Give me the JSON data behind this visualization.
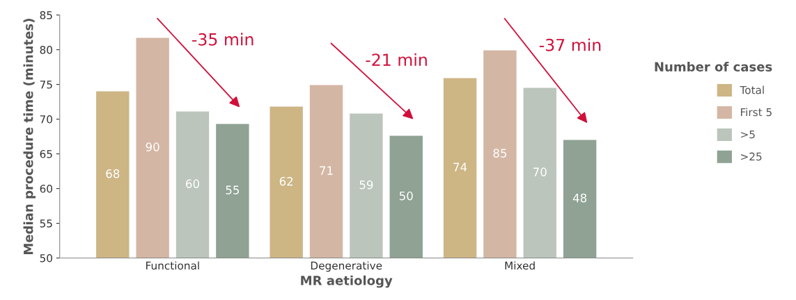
{
  "chart_data": {
    "type": "bar",
    "xlabel": "MR aetiology",
    "ylabel": "Median procedure time (minutes)",
    "legend_title": "Number of cases",
    "categories": [
      "Functional",
      "Degenerative",
      "Mixed"
    ],
    "series": [
      {
        "name": "Total",
        "color": "#cdb584",
        "values": [
          74.0,
          71.8,
          75.9
        ]
      },
      {
        "name": "First 5",
        "color": "#d4b6a4",
        "values": [
          81.7,
          74.9,
          79.9
        ]
      },
      {
        "name": ">5",
        "color": "#bbc5bc",
        "values": [
          71.1,
          70.8,
          74.5
        ]
      },
      {
        "name": ">25",
        "color": "#8fa294",
        "values": [
          69.3,
          67.6,
          67.0
        ]
      }
    ],
    "annotations": [
      "-35 min",
      "-21 min",
      "-37 min",
      "68",
      "62",
      "74",
      "90",
      "71",
      "85",
      "60",
      "59",
      "70",
      "55",
      "50",
      "48"
    ],
    "ylim": [
      50,
      85
    ],
    "yticks": [
      50,
      55,
      60,
      65,
      70,
      75,
      80,
      85
    ],
    "grid": false,
    "legend": "right"
  }
}
